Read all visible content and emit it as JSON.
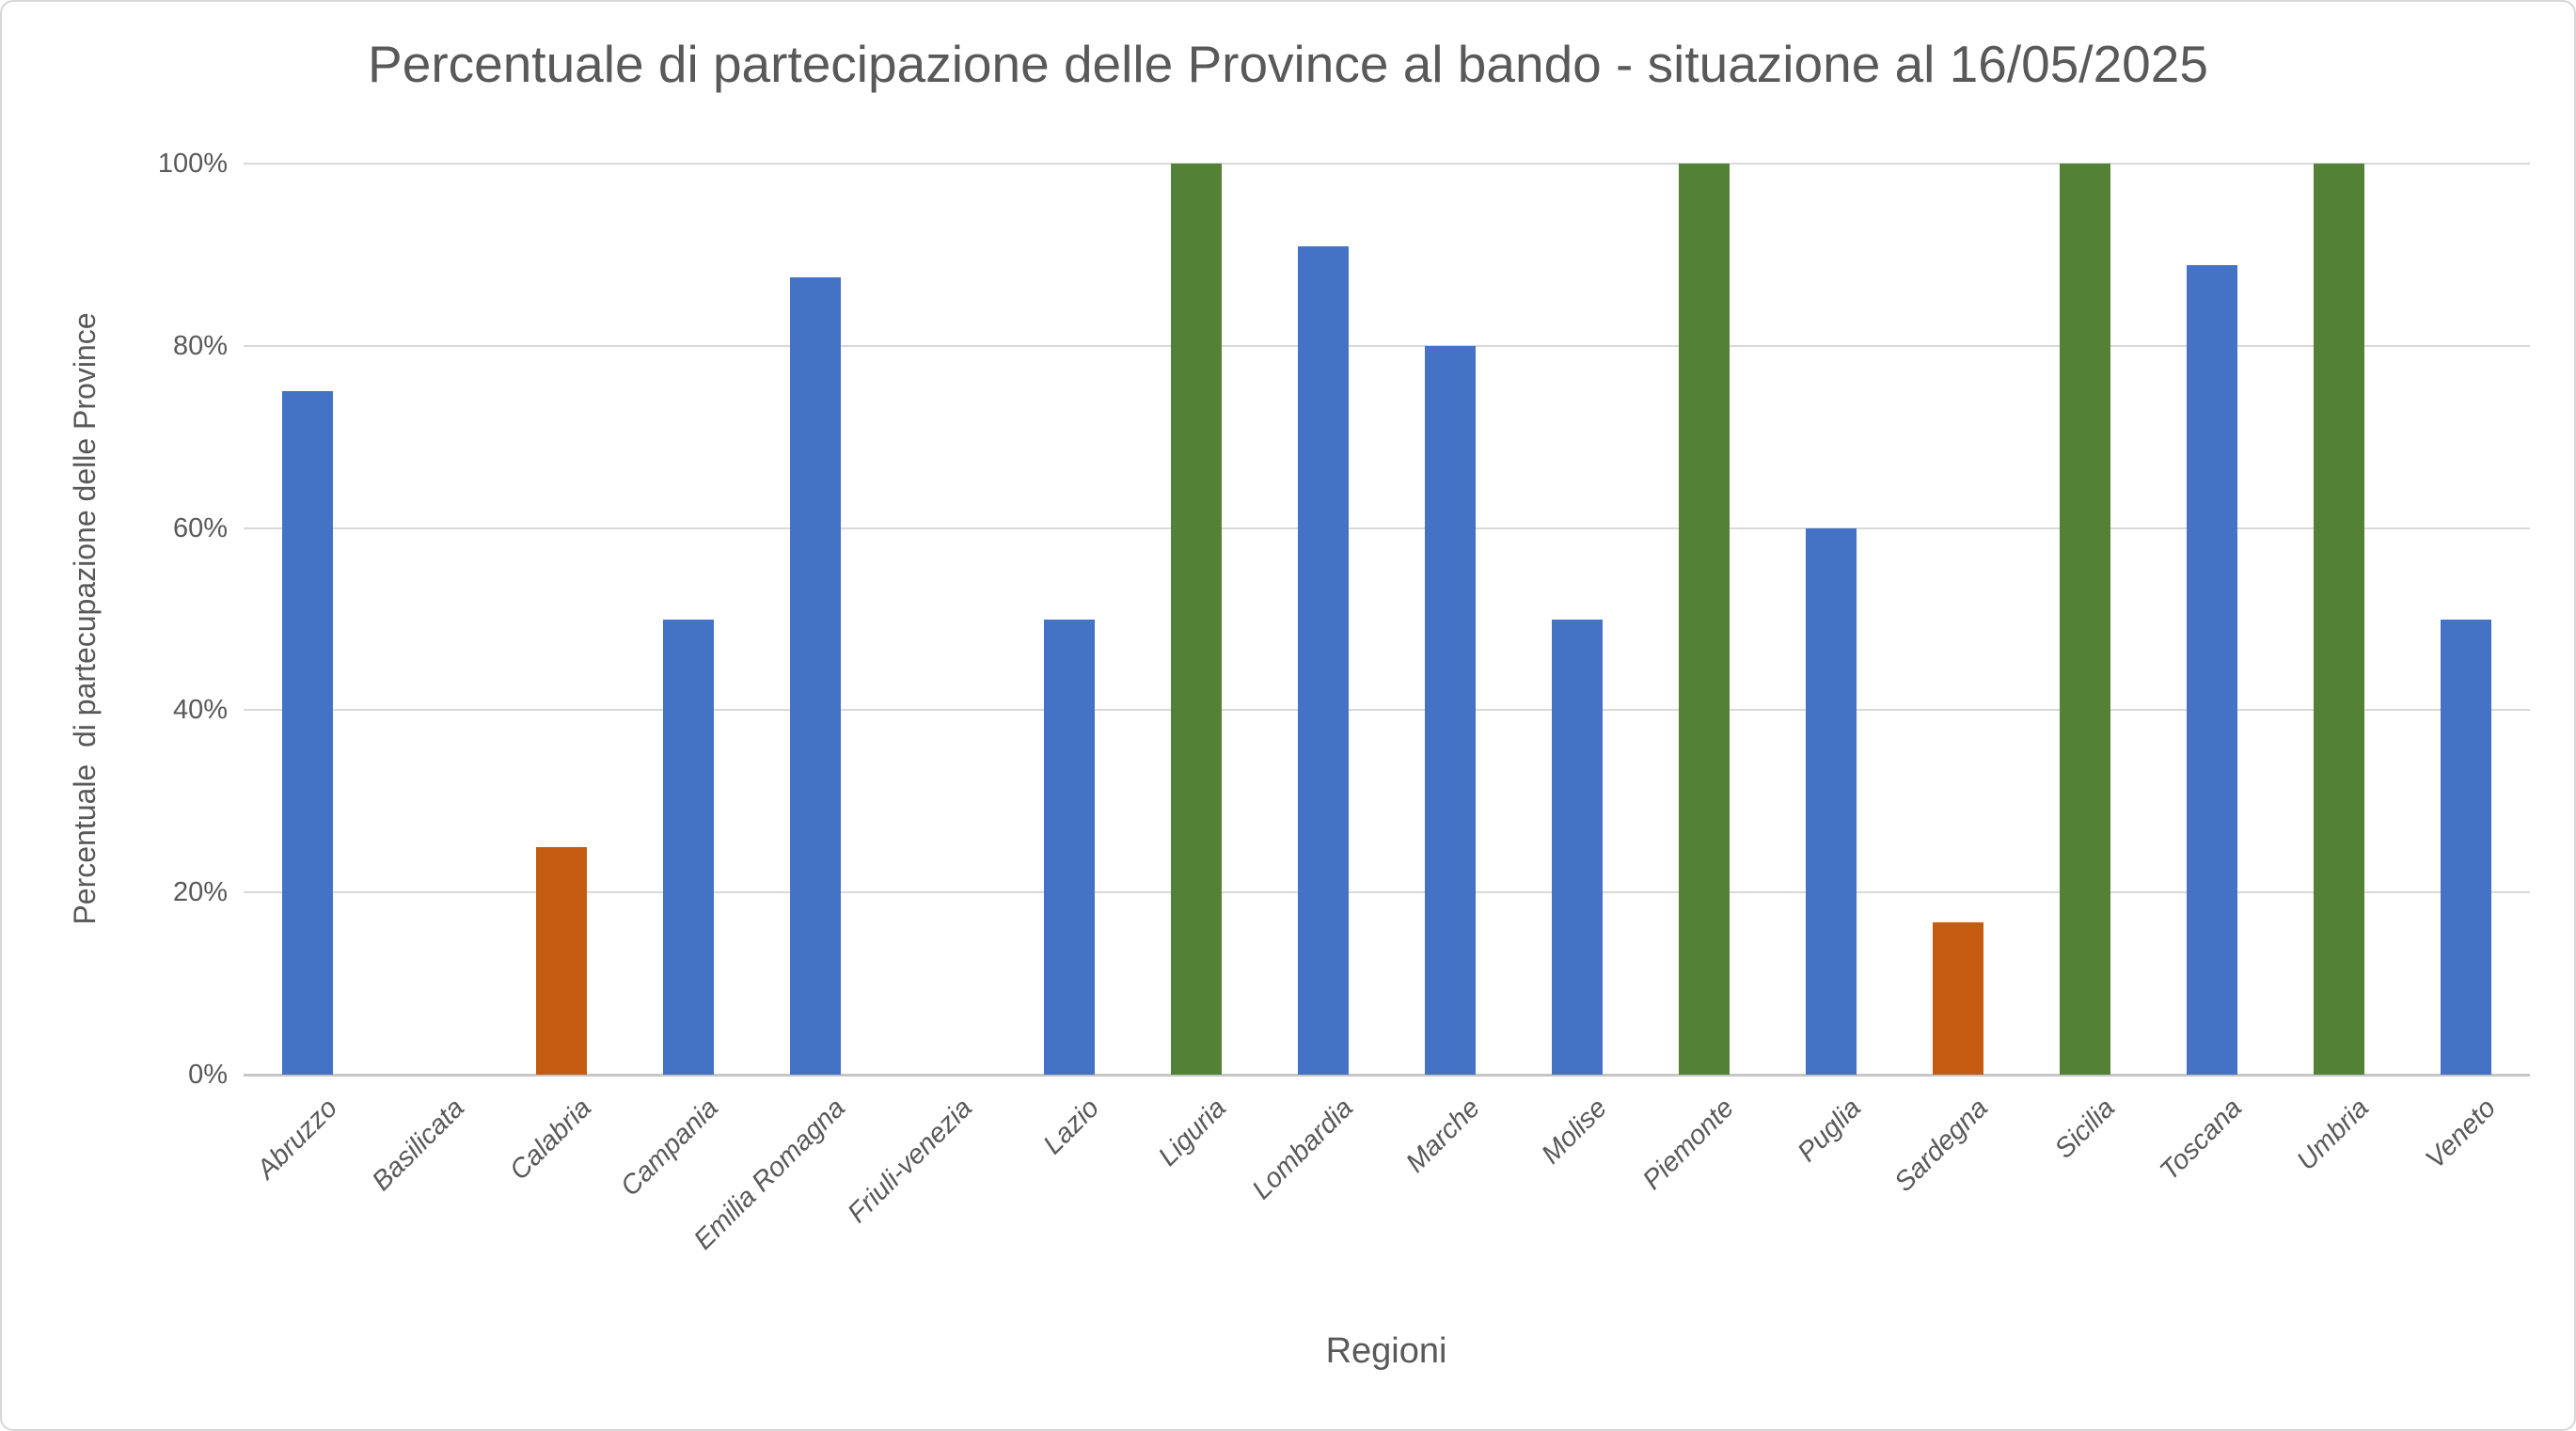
{
  "chart_data": {
    "type": "bar",
    "title": "Percentuale di partecipazione delle Province al bando - situazione al 16/05/2025",
    "xlabel": "Regioni",
    "ylabel": "Percentuale  di partecupazione delle Province",
    "categories": [
      "Abruzzo",
      "Basilicata",
      "Calabria",
      "Campania",
      "Emilia Romagna",
      "Friuli-venezia",
      "Lazio",
      "Liguria",
      "Lombardia",
      "Marche",
      "Molise",
      "Piemonte",
      "Puglia",
      "Sardegna",
      "Sicilia",
      "Toscana",
      "Umbria",
      "Veneto"
    ],
    "values": [
      75,
      0,
      25,
      50,
      87.5,
      0,
      50,
      100,
      90.9,
      80,
      50,
      100,
      60,
      16.7,
      100,
      88.9,
      100,
      50
    ],
    "bar_colors": [
      "#4472C4",
      "#4472C4",
      "#C55A11",
      "#4472C4",
      "#4472C4",
      "#4472C4",
      "#4472C4",
      "#538135",
      "#4472C4",
      "#4472C4",
      "#4472C4",
      "#538135",
      "#4472C4",
      "#C55A11",
      "#538135",
      "#4472C4",
      "#538135",
      "#4472C4"
    ],
    "y_ticks": [
      "0%",
      "20%",
      "40%",
      "60%",
      "80%",
      "100%"
    ],
    "ylim": [
      0,
      100
    ],
    "grid": true,
    "legend": "none",
    "colors": {
      "series_blue": "#4472C4",
      "series_orange": "#C55A11",
      "series_green": "#538135",
      "gridline": "#D9D9D9",
      "text": "#595959"
    }
  }
}
